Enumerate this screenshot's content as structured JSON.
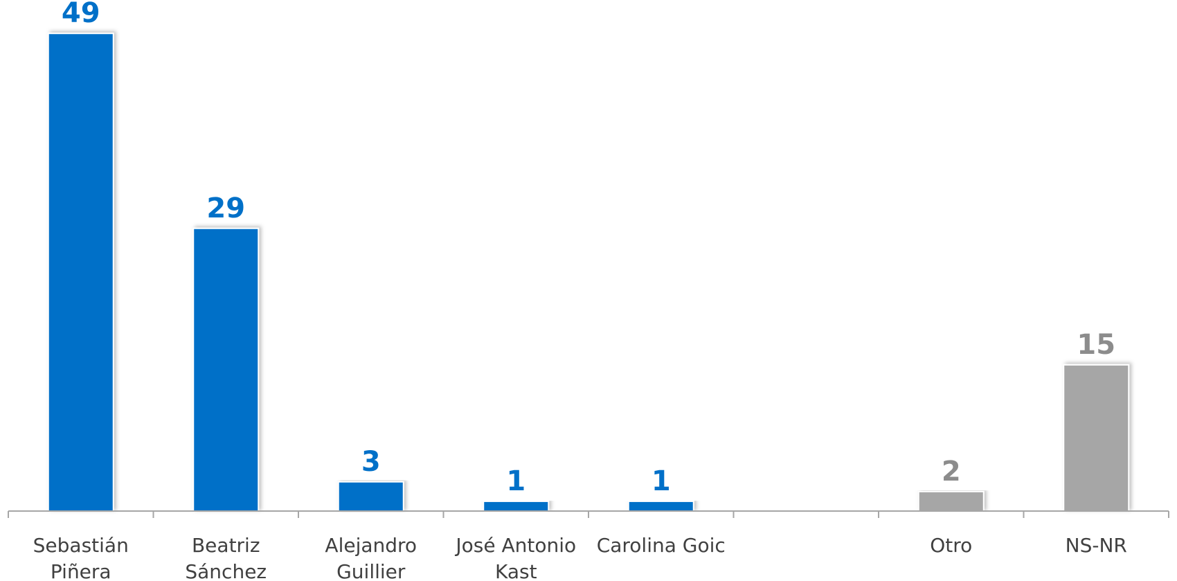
{
  "chart_data": {
    "type": "bar",
    "categories": [
      [
        "Sebastián",
        "Piñera"
      ],
      [
        "Beatriz",
        "Sánchez"
      ],
      [
        "Alejandro",
        "Guillier"
      ],
      [
        "José Antonio",
        "Kast"
      ],
      [
        "Carolina Goic"
      ],
      [
        ""
      ],
      [
        "Otro"
      ],
      [
        "NS-NR"
      ]
    ],
    "values": [
      49,
      29,
      3,
      1,
      1,
      null,
      2,
      15
    ],
    "colors": [
      "#0070C8",
      "#0070C8",
      "#0070C8",
      "#0070C8",
      "#0070C8",
      null,
      "#A6A6A6",
      "#A6A6A6"
    ],
    "label_colors": [
      "#0070C8",
      "#0070C8",
      "#0070C8",
      "#0070C8",
      "#0070C8",
      null,
      "#8C8C8C",
      "#8C8C8C"
    ],
    "ylim": [
      0,
      52
    ],
    "grid": false,
    "axis_color": "#A6A6A6"
  }
}
